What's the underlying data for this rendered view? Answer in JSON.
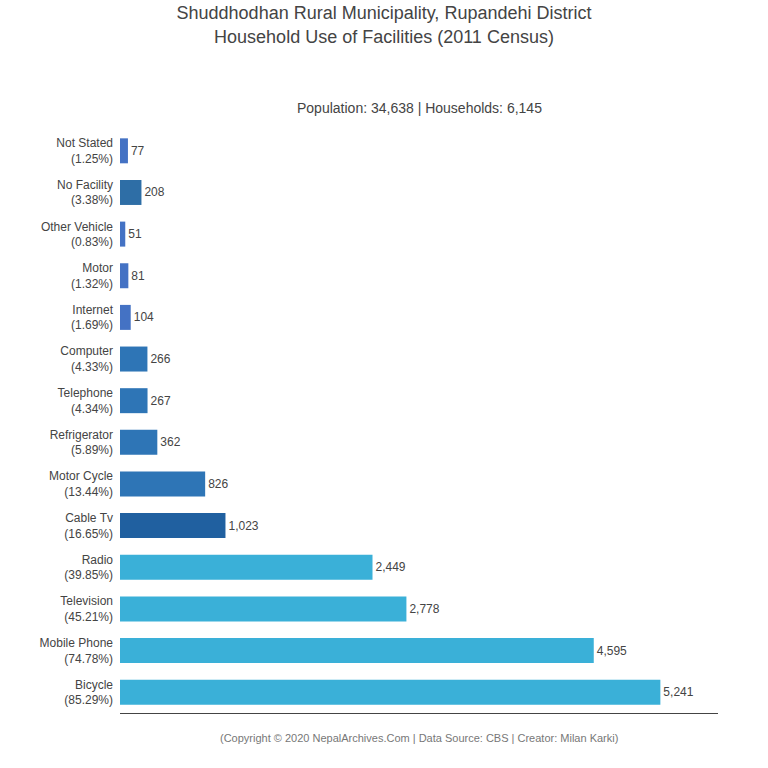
{
  "chart_data": {
    "type": "bar",
    "orientation": "horizontal",
    "title": "Shuddhodhan Rural Municipality, Rupandehi District\nHousehold Use of Facilities (2011 Census)",
    "subtitle": "Population: 34,638 | Households: 6,145",
    "annotations": [
      "(Copyright © 2020 NepalArchives.Com | Data Source: CBS | Creator: Milan Karki)"
    ],
    "categories": [
      "Not Stated\n(1.25%)",
      "No Facility\n(3.38%)",
      "Other Vehicle\n(0.83%)",
      "Motor\n(1.32%)",
      "Internet\n(1.69%)",
      "Computer\n(4.33%)",
      "Telephone\n(4.34%)",
      "Refrigerator\n(5.89%)",
      "Motor Cycle\n(13.44%)",
      "Cable Tv\n(16.65%)",
      "Radio\n(39.85%)",
      "Television\n(45.21%)",
      "Mobile Phone\n(74.78%)",
      "Bicycle\n(85.29%)"
    ],
    "values": [
      77,
      208,
      51,
      81,
      104,
      266,
      267,
      362,
      826,
      1023,
      2449,
      2778,
      4595,
      5241
    ],
    "value_labels": [
      "77",
      "208",
      "51",
      "81",
      "104",
      "266",
      "267",
      "362",
      "826",
      "1,023",
      "2,449",
      "2,778",
      "4,595",
      "5,241"
    ],
    "data_labels": true,
    "colors": [
      "#4472c4",
      "#2e6ea6",
      "#4472c4",
      "#4472c4",
      "#4472c4",
      "#2e75b6",
      "#2e75b6",
      "#2e75b6",
      "#2e75b6",
      "#2060a0",
      "#3ab0d8",
      "#3ab0d8",
      "#3ab0d8",
      "#3ab0d8"
    ],
    "xlim": [
      0,
      5800
    ],
    "tick_labels": "y",
    "grid": false
  }
}
